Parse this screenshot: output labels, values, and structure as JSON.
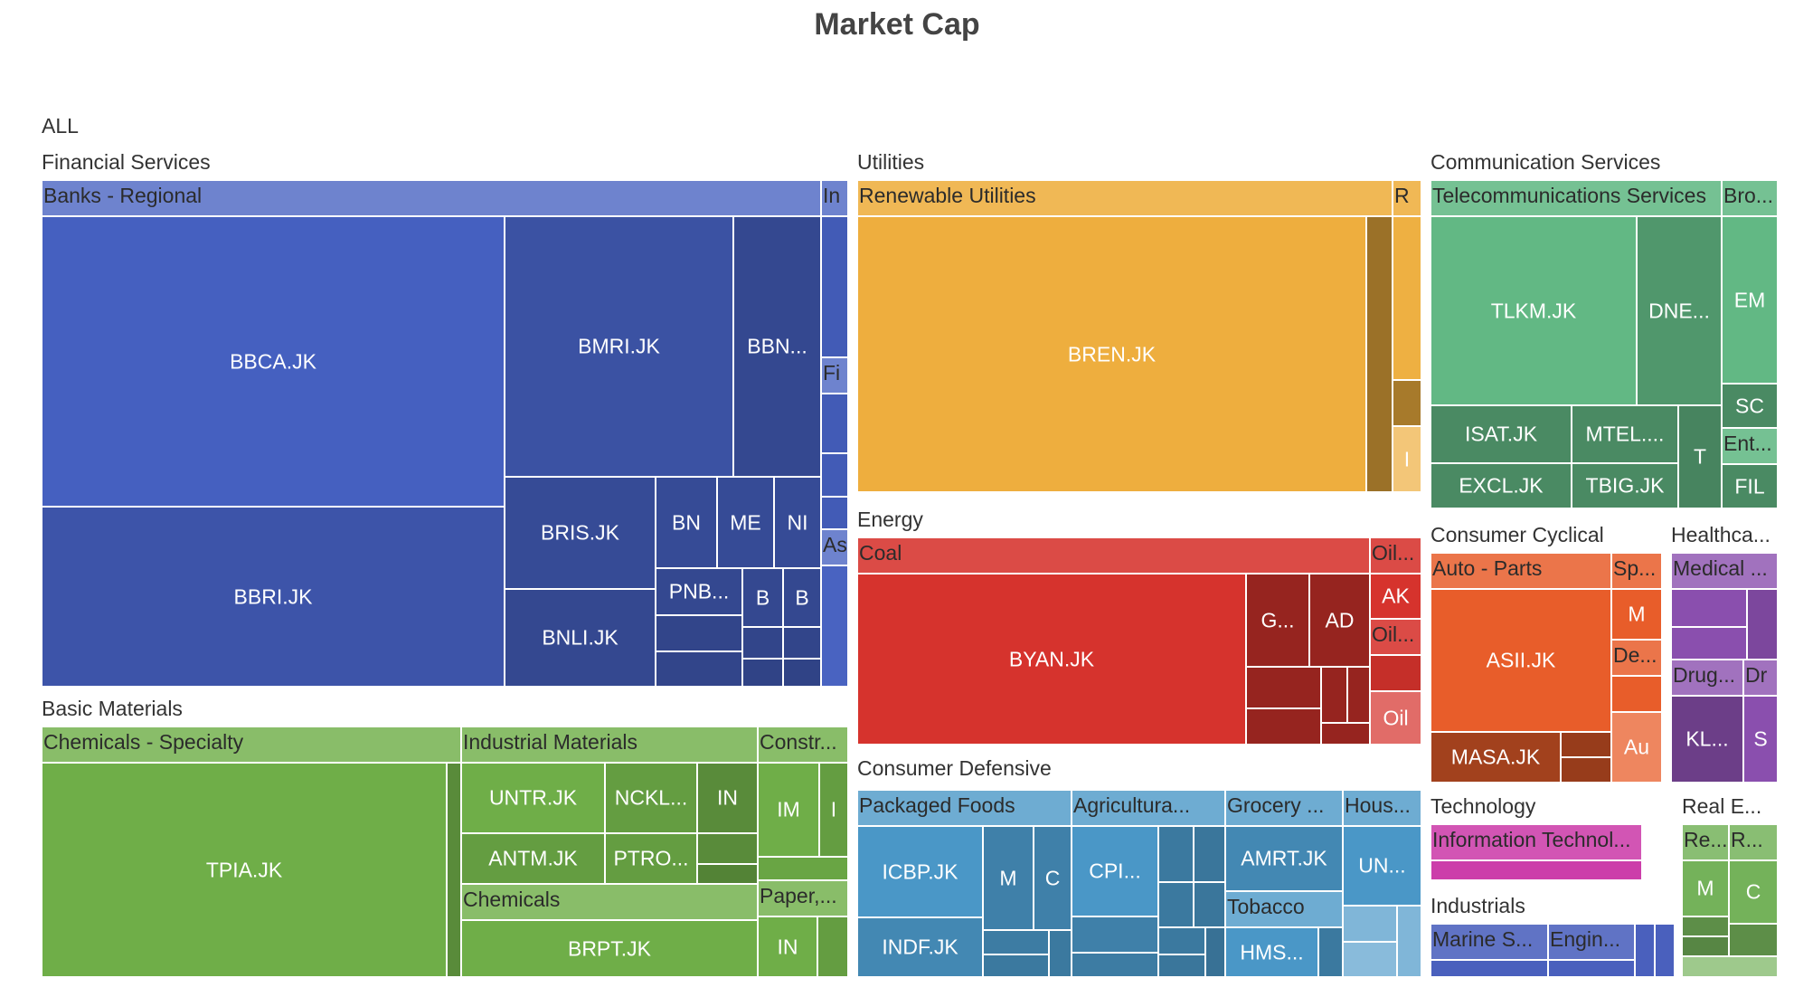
{
  "chart_data": {
    "type": "treemap",
    "title": "Market Cap",
    "root": "ALL",
    "sectors": [
      {
        "name": "Financial Services",
        "color": "#4560c0",
        "industries": [
          {
            "name": "Banks - Regional",
            "tickers": [
              "BBCA.JK",
              "BBRI.JK",
              "BMRI.JK",
              "BBN...",
              "BRIS.JK",
              "BNLI.JK",
              "BN",
              "ME",
              "NI",
              "PNB...",
              "B",
              "B"
            ]
          },
          {
            "name": "In",
            "tickers": []
          },
          {
            "name": "Fi",
            "tickers": []
          },
          {
            "name": "As",
            "tickers": []
          }
        ]
      },
      {
        "name": "Utilities",
        "color": "#eeae3e",
        "industries": [
          {
            "name": "Renewable Utilities",
            "tickers": [
              "BREN.JK"
            ]
          },
          {
            "name": "R",
            "tickers": [
              "I"
            ]
          }
        ]
      },
      {
        "name": "Communication Services",
        "color": "#62b884",
        "industries": [
          {
            "name": "Telecommunications Services",
            "tickers": [
              "TLKM.JK",
              "DNE...",
              "ISAT.JK",
              "MTEL....",
              "EXCL.JK",
              "TBIG.JK",
              "T"
            ]
          },
          {
            "name": "Bro...",
            "tickers": [
              "EM",
              "SC"
            ]
          },
          {
            "name": "Ent...",
            "tickers": [
              "FIL"
            ]
          }
        ]
      },
      {
        "name": "Energy",
        "color": "#d6332d",
        "industries": [
          {
            "name": "Coal",
            "tickers": [
              "BYAN.JK",
              "G...",
              "AD"
            ]
          },
          {
            "name": "Oil...",
            "tickers": [
              "AK"
            ]
          },
          {
            "name": "Oil...",
            "tickers": [
              "Oil"
            ]
          }
        ]
      },
      {
        "name": "Basic Materials",
        "color": "#6fae48",
        "industries": [
          {
            "name": "Chemicals - Specialty",
            "tickers": [
              "TPIA.JK"
            ]
          },
          {
            "name": "Industrial Materials",
            "tickers": [
              "UNTR.JK",
              "NCKL...",
              "IN",
              "ANTM.JK",
              "PTRO..."
            ]
          },
          {
            "name": "Constr...",
            "tickers": [
              "IM",
              "I"
            ]
          },
          {
            "name": "Chemicals",
            "tickers": [
              "BRPT.JK"
            ]
          },
          {
            "name": "Paper,...",
            "tickers": [
              "IN"
            ]
          }
        ]
      },
      {
        "name": "Consumer Defensive",
        "color": "#4a97c7",
        "industries": [
          {
            "name": "Packaged Foods",
            "tickers": [
              "ICBP.JK",
              "INDF.JK",
              "M",
              "C"
            ]
          },
          {
            "name": "Agricultura...",
            "tickers": [
              "CPI..."
            ]
          },
          {
            "name": "Grocery ...",
            "tickers": [
              "AMRT.JK"
            ]
          },
          {
            "name": "Tobacco",
            "tickers": [
              "HMS..."
            ]
          },
          {
            "name": "Hous...",
            "tickers": [
              "UN..."
            ]
          }
        ]
      },
      {
        "name": "Consumer Cyclical",
        "color": "#e85d2a",
        "industries": [
          {
            "name": "Auto - Parts",
            "tickers": [
              "ASII.JK",
              "MASA.JK"
            ]
          },
          {
            "name": "Sp...",
            "tickers": [
              "M"
            ]
          },
          {
            "name": "De...",
            "tickers": [
              "Au"
            ]
          }
        ]
      },
      {
        "name": "Healthca...",
        "color": "#8a4fae",
        "industries": [
          {
            "name": "Medical ...",
            "tickers": []
          },
          {
            "name": "Drug...",
            "tickers": [
              "KL..."
            ]
          },
          {
            "name": "Dr",
            "tickers": [
              "S"
            ]
          }
        ]
      },
      {
        "name": "Technology",
        "color": "#cc3eaa",
        "industries": [
          {
            "name": "Information Technol...",
            "tickers": []
          }
        ]
      },
      {
        "name": "Industrials",
        "color": "#4a60bd",
        "industries": [
          {
            "name": "Marine S...",
            "tickers": []
          },
          {
            "name": "Engin...",
            "tickers": []
          }
        ]
      },
      {
        "name": "Real E...",
        "color": "#74b25a",
        "industries": [
          {
            "name": "Re...",
            "tickers": [
              "M"
            ]
          },
          {
            "name": "R...",
            "tickers": [
              "C"
            ]
          }
        ]
      }
    ]
  }
}
